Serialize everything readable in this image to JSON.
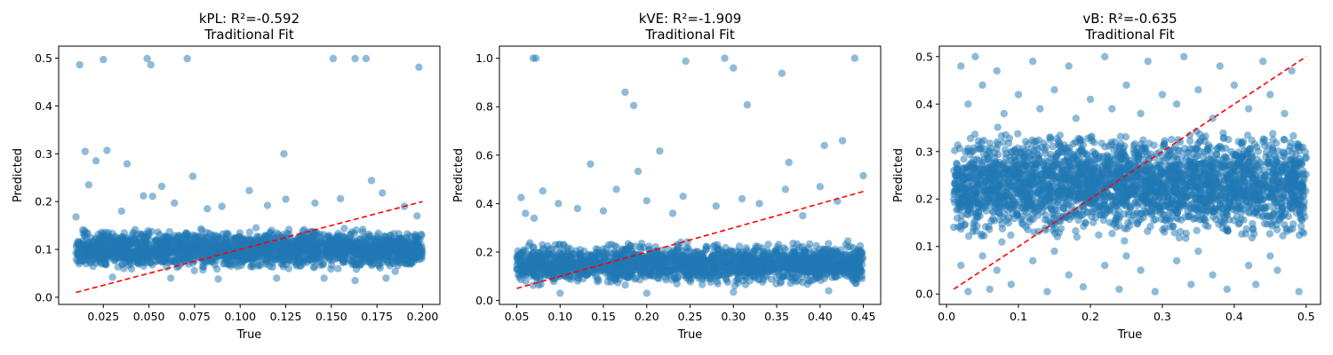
{
  "chart_data": [
    {
      "type": "scatter",
      "title": "kPL: R²=-0.592",
      "subtitle": "Traditional Fit",
      "xlabel": "True",
      "ylabel": "Predicted",
      "xlim": [
        0.0005,
        0.2095
      ],
      "ylim": [
        -0.015,
        0.525
      ],
      "xticks": [
        0.025,
        0.05,
        0.075,
        0.1,
        0.125,
        0.15,
        0.175,
        0.2
      ],
      "xtick_labels": [
        "0.025",
        "0.050",
        "0.075",
        "0.100",
        "0.125",
        "0.150",
        "0.175",
        "0.200"
      ],
      "yticks": [
        0.0,
        0.1,
        0.2,
        0.3,
        0.4,
        0.5
      ],
      "ytick_labels": [
        "0.0",
        "0.1",
        "0.2",
        "0.3",
        "0.4",
        "0.5"
      ],
      "point_color": "#1f77b4",
      "line_color": "#ff0000",
      "reference_line": [
        [
          0.01,
          0.01
        ],
        [
          0.2,
          0.2
        ]
      ],
      "band": {
        "x": [
          0.01,
          0.2
        ],
        "y": [
          0.05,
          0.15
        ],
        "count": 2200
      },
      "points": [
        [
          0.012,
          0.486
        ],
        [
          0.025,
          0.497
        ],
        [
          0.049,
          0.499
        ],
        [
          0.051,
          0.486
        ],
        [
          0.071,
          0.499
        ],
        [
          0.151,
          0.499
        ],
        [
          0.163,
          0.499
        ],
        [
          0.169,
          0.499
        ],
        [
          0.198,
          0.481
        ],
        [
          0.015,
          0.305
        ],
        [
          0.021,
          0.285
        ],
        [
          0.027,
          0.307
        ],
        [
          0.038,
          0.279
        ],
        [
          0.124,
          0.3
        ],
        [
          0.017,
          0.235
        ],
        [
          0.057,
          0.232
        ],
        [
          0.074,
          0.253
        ],
        [
          0.172,
          0.244
        ],
        [
          0.047,
          0.212
        ],
        [
          0.052,
          0.211
        ],
        [
          0.105,
          0.223
        ],
        [
          0.178,
          0.218
        ],
        [
          0.125,
          0.205
        ],
        [
          0.155,
          0.206
        ],
        [
          0.064,
          0.197
        ],
        [
          0.09,
          0.19
        ],
        [
          0.141,
          0.197
        ],
        [
          0.19,
          0.19
        ],
        [
          0.01,
          0.168
        ],
        [
          0.035,
          0.18
        ],
        [
          0.082,
          0.185
        ],
        [
          0.115,
          0.192
        ],
        [
          0.197,
          0.17
        ],
        [
          0.163,
          0.035
        ],
        [
          0.088,
          0.038
        ],
        [
          0.12,
          0.04
        ],
        [
          0.18,
          0.04
        ],
        [
          0.03,
          0.042
        ],
        [
          0.062,
          0.04
        ],
        [
          0.146,
          0.04
        ]
      ]
    },
    {
      "type": "scatter",
      "title": "kVE: R²=-1.909",
      "subtitle": "Traditional Fit",
      "xlabel": "True",
      "ylabel": "Predicted",
      "xlim": [
        0.03,
        0.47
      ],
      "ylim": [
        -0.016,
        1.05
      ],
      "xticks": [
        0.05,
        0.1,
        0.15,
        0.2,
        0.25,
        0.3,
        0.35,
        0.4,
        0.45
      ],
      "xtick_labels": [
        "0.05",
        "0.10",
        "0.15",
        "0.20",
        "0.25",
        "0.30",
        "0.35",
        "0.40",
        "0.45"
      ],
      "yticks": [
        0.0,
        0.2,
        0.4,
        0.6,
        0.8,
        1.0
      ],
      "ytick_labels": [
        "0.0",
        "0.2",
        "0.4",
        "0.6",
        "0.8",
        "1.0"
      ],
      "point_color": "#1f77b4",
      "line_color": "#ff0000",
      "reference_line": [
        [
          0.05,
          0.05
        ],
        [
          0.45,
          0.45
        ]
      ],
      "band": {
        "x": [
          0.05,
          0.45
        ],
        "y": [
          0.05,
          0.25
        ],
        "count": 2200
      },
      "points": [
        [
          0.069,
          1.0
        ],
        [
          0.072,
          1.0
        ],
        [
          0.245,
          0.988
        ],
        [
          0.29,
          1.0
        ],
        [
          0.3,
          0.96
        ],
        [
          0.44,
          1.0
        ],
        [
          0.356,
          0.938
        ],
        [
          0.175,
          0.86
        ],
        [
          0.185,
          0.805
        ],
        [
          0.316,
          0.808
        ],
        [
          0.215,
          0.617
        ],
        [
          0.135,
          0.563
        ],
        [
          0.19,
          0.533
        ],
        [
          0.364,
          0.57
        ],
        [
          0.405,
          0.64
        ],
        [
          0.426,
          0.66
        ],
        [
          0.45,
          0.515
        ],
        [
          0.08,
          0.452
        ],
        [
          0.36,
          0.459
        ],
        [
          0.165,
          0.459
        ],
        [
          0.055,
          0.425
        ],
        [
          0.242,
          0.43
        ],
        [
          0.31,
          0.42
        ],
        [
          0.098,
          0.4
        ],
        [
          0.2,
          0.412
        ],
        [
          0.4,
          0.47
        ],
        [
          0.12,
          0.38
        ],
        [
          0.28,
          0.39
        ],
        [
          0.33,
          0.4
        ],
        [
          0.42,
          0.41
        ],
        [
          0.06,
          0.36
        ],
        [
          0.15,
          0.37
        ],
        [
          0.23,
          0.36
        ],
        [
          0.07,
          0.34
        ],
        [
          0.38,
          0.35
        ],
        [
          0.1,
          0.03
        ],
        [
          0.2,
          0.03
        ],
        [
          0.3,
          0.035
        ],
        [
          0.41,
          0.04
        ]
      ]
    },
    {
      "type": "scatter",
      "title": "vB: R²=-0.635",
      "subtitle": "Traditional Fit",
      "xlabel": "True",
      "ylabel": "Predicted",
      "xlim": [
        -0.01,
        0.52
      ],
      "ylim": [
        -0.022,
        0.522
      ],
      "xticks": [
        0.0,
        0.1,
        0.2,
        0.3,
        0.4,
        0.5
      ],
      "xtick_labels": [
        "0.0",
        "0.1",
        "0.2",
        "0.3",
        "0.4",
        "0.5"
      ],
      "yticks": [
        0.0,
        0.1,
        0.2,
        0.3,
        0.4,
        0.5
      ],
      "ytick_labels": [
        "0.0",
        "0.1",
        "0.2",
        "0.3",
        "0.4",
        "0.5"
      ],
      "point_color": "#1f77b4",
      "line_color": "#ff0000",
      "reference_line": [
        [
          0.01,
          0.01
        ],
        [
          0.5,
          0.5
        ]
      ],
      "band": {
        "x": [
          0.01,
          0.5
        ],
        "y": [
          0.1,
          0.36
        ],
        "count": 3000
      },
      "points": [
        [
          0.02,
          0.48
        ],
        [
          0.04,
          0.5
        ],
        [
          0.07,
          0.47
        ],
        [
          0.12,
          0.49
        ],
        [
          0.17,
          0.48
        ],
        [
          0.22,
          0.5
        ],
        [
          0.28,
          0.49
        ],
        [
          0.33,
          0.5
        ],
        [
          0.38,
          0.48
        ],
        [
          0.44,
          0.49
        ],
        [
          0.48,
          0.47
        ],
        [
          0.05,
          0.44
        ],
        [
          0.1,
          0.42
        ],
        [
          0.15,
          0.43
        ],
        [
          0.2,
          0.41
        ],
        [
          0.25,
          0.44
        ],
        [
          0.3,
          0.42
        ],
        [
          0.35,
          0.43
        ],
        [
          0.4,
          0.44
        ],
        [
          0.45,
          0.42
        ],
        [
          0.03,
          0.4
        ],
        [
          0.08,
          0.38
        ],
        [
          0.13,
          0.39
        ],
        [
          0.18,
          0.37
        ],
        [
          0.23,
          0.39
        ],
        [
          0.27,
          0.38
        ],
        [
          0.32,
          0.4
        ],
        [
          0.37,
          0.37
        ],
        [
          0.42,
          0.39
        ],
        [
          0.47,
          0.38
        ],
        [
          0.03,
          0.005
        ],
        [
          0.06,
          0.01
        ],
        [
          0.09,
          0.02
        ],
        [
          0.14,
          0.005
        ],
        [
          0.19,
          0.015
        ],
        [
          0.24,
          0.01
        ],
        [
          0.29,
          0.005
        ],
        [
          0.34,
          0.02
        ],
        [
          0.39,
          0.01
        ],
        [
          0.43,
          0.02
        ],
        [
          0.49,
          0.005
        ],
        [
          0.02,
          0.06
        ],
        [
          0.07,
          0.05
        ],
        [
          0.12,
          0.07
        ],
        [
          0.17,
          0.04
        ],
        [
          0.22,
          0.06
        ],
        [
          0.27,
          0.05
        ],
        [
          0.32,
          0.07
        ],
        [
          0.37,
          0.04
        ],
        [
          0.42,
          0.06
        ],
        [
          0.46,
          0.05
        ],
        [
          0.05,
          0.08
        ],
        [
          0.15,
          0.09
        ],
        [
          0.25,
          0.08
        ],
        [
          0.35,
          0.09
        ],
        [
          0.45,
          0.08
        ]
      ]
    }
  ]
}
